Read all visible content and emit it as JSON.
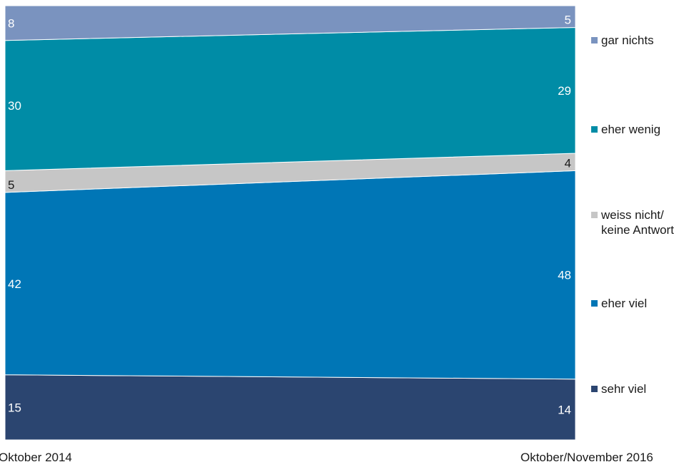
{
  "chart_data": {
    "type": "area",
    "stacked": true,
    "x": [
      "Oktober 2014",
      "Oktober/November 2016"
    ],
    "ylim": [
      0,
      100
    ],
    "series": [
      {
        "name": "sehr viel",
        "values": [
          15,
          14
        ],
        "color": "#2b4570"
      },
      {
        "name": "eher viel",
        "values": [
          42,
          48
        ],
        "color": "#0076b6"
      },
      {
        "name": "weiss nicht/ keine Antwort",
        "lines": [
          "weiss nicht/",
          "keine Antwort"
        ],
        "values": [
          5,
          4
        ],
        "color": "#c6c6c6"
      },
      {
        "name": "eher wenig",
        "values": [
          30,
          29
        ],
        "color": "#008ca6"
      },
      {
        "name": "gar nichts",
        "values": [
          8,
          5
        ],
        "color": "#7a93bf"
      }
    ],
    "legend_position": "right",
    "grid": false
  }
}
